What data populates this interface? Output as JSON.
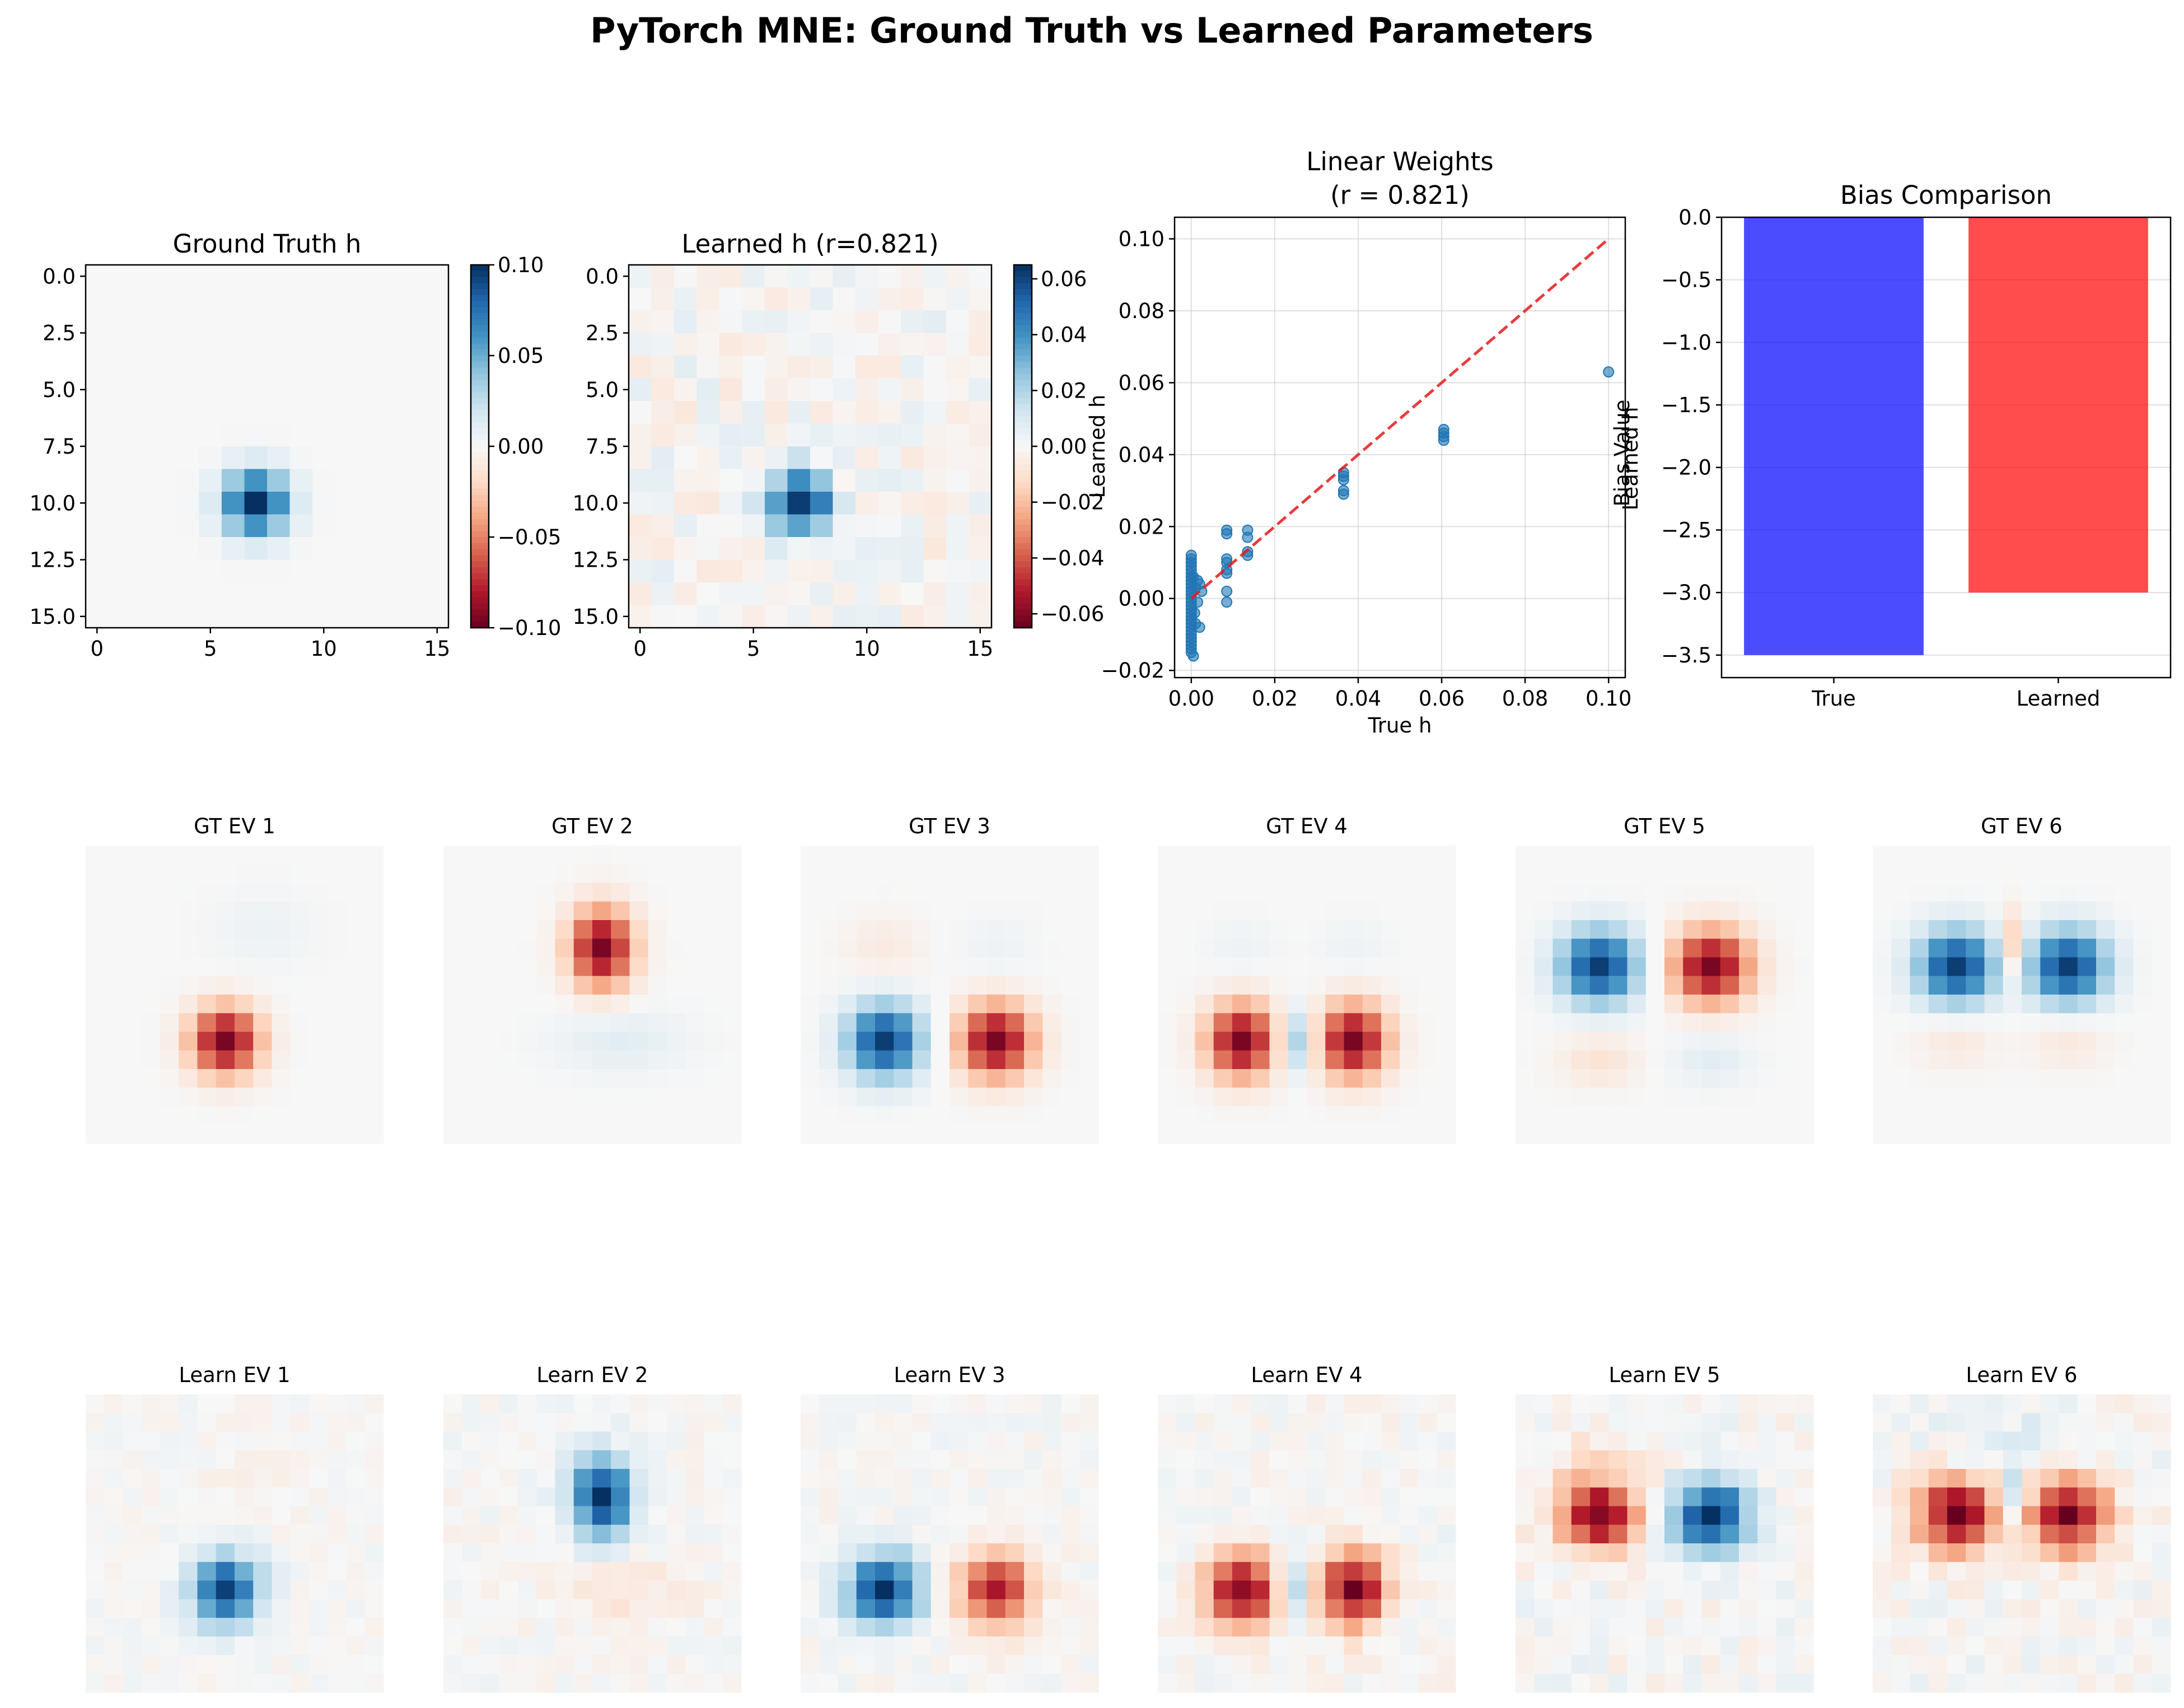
{
  "figure": {
    "title": "PyTorch MNE: Ground Truth vs Learned Parameters"
  },
  "chart_data": [
    {
      "type": "heatmap",
      "title": "Ground Truth h",
      "colormap": "RdBu",
      "grid_size": [
        16,
        16
      ],
      "generator": {
        "kind": "gaussian_blob",
        "center": [
          7,
          10
        ],
        "sigma": 1.0,
        "peak": 0.1,
        "noise": 0.0
      },
      "x_ticks": [
        0,
        5,
        10,
        15
      ],
      "y_ticks": [
        0.0,
        2.5,
        5.0,
        7.5,
        10.0,
        12.5,
        15.0
      ],
      "x_tick_labels": [
        "0",
        "5",
        "10",
        "15"
      ],
      "y_tick_labels": [
        "0.0",
        "2.5",
        "5.0",
        "7.5",
        "10.0",
        "12.5",
        "15.0"
      ],
      "colorbar": {
        "range": [
          -0.1,
          0.1
        ],
        "ticks": [
          "0.10",
          "0.05",
          "0.00",
          "−0.05",
          "−0.10"
        ],
        "label": ""
      }
    },
    {
      "type": "heatmap",
      "title": "Learned h (r=0.821)",
      "colormap": "RdBu",
      "grid_size": [
        16,
        16
      ],
      "generator": {
        "kind": "gaussian_blob",
        "center": [
          7,
          10
        ],
        "sigma": 1.0,
        "peak": 0.063,
        "noise": 0.007
      },
      "x_ticks": [
        0,
        5,
        10,
        15
      ],
      "y_ticks": [
        0.0,
        2.5,
        5.0,
        7.5,
        10.0,
        12.5,
        15.0
      ],
      "x_tick_labels": [
        "0",
        "5",
        "10",
        "15"
      ],
      "y_tick_labels": [
        "0.0",
        "2.5",
        "5.0",
        "7.5",
        "10.0",
        "12.5",
        "15.0"
      ],
      "colorbar": {
        "range": [
          -0.065,
          0.065
        ],
        "ticks": [
          "0.06",
          "0.04",
          "0.02",
          "0.00",
          "−0.02",
          "−0.04",
          "−0.06"
        ],
        "label": "Learned h"
      }
    },
    {
      "type": "scatter",
      "title_lines": [
        "Linear Weights",
        "(r = 0.821)"
      ],
      "xlabel": "True h",
      "ylabel": "Learned h",
      "xlim": [
        -0.004,
        0.104
      ],
      "ylim": [
        -0.022,
        0.106
      ],
      "x_ticks": [
        "0.00",
        "0.02",
        "0.04",
        "0.06",
        "0.08",
        "0.10"
      ],
      "y_ticks": [
        "−0.02",
        "0.00",
        "0.02",
        "0.04",
        "0.06",
        "0.08",
        "0.10"
      ],
      "identity_line": {
        "from": [
          0,
          0
        ],
        "to": [
          0.1,
          0.1
        ],
        "color": "#e41a1c",
        "style": "dashed"
      },
      "point_color": "#1f77b4",
      "points": [
        [
          0.0,
          0.012
        ],
        [
          0.0,
          0.011
        ],
        [
          0.0,
          0.01
        ],
        [
          0.0,
          0.009
        ],
        [
          0.0,
          0.008
        ],
        [
          0.0,
          0.007
        ],
        [
          0.0,
          0.006
        ],
        [
          0.0,
          0.005
        ],
        [
          0.0,
          0.004
        ],
        [
          0.0,
          0.003
        ],
        [
          0.0,
          0.002
        ],
        [
          0.0,
          0.001
        ],
        [
          0.0,
          0.0
        ],
        [
          0.0,
          -0.001
        ],
        [
          0.0,
          -0.002
        ],
        [
          0.0,
          -0.003
        ],
        [
          0.0,
          -0.004
        ],
        [
          0.0,
          -0.005
        ],
        [
          0.0,
          -0.006
        ],
        [
          0.0,
          -0.007
        ],
        [
          0.0,
          -0.008
        ],
        [
          0.0,
          -0.009
        ],
        [
          0.0,
          -0.01
        ],
        [
          0.0,
          -0.011
        ],
        [
          0.0,
          -0.012
        ],
        [
          0.0,
          -0.013
        ],
        [
          0.0,
          -0.014
        ],
        [
          0.0,
          -0.015
        ],
        [
          0.0005,
          -0.016
        ],
        [
          0.0005,
          0.006
        ],
        [
          0.0008,
          -0.004
        ],
        [
          0.001,
          0.003
        ],
        [
          0.001,
          -0.007
        ],
        [
          0.0015,
          0.005
        ],
        [
          0.0015,
          -0.001
        ],
        [
          0.002,
          0.004
        ],
        [
          0.002,
          -0.008
        ],
        [
          0.0025,
          0.002
        ],
        [
          0.0085,
          0.019
        ],
        [
          0.0085,
          0.018
        ],
        [
          0.0085,
          0.011
        ],
        [
          0.0085,
          0.01
        ],
        [
          0.0085,
          0.008
        ],
        [
          0.0085,
          0.007
        ],
        [
          0.0085,
          0.002
        ],
        [
          0.0085,
          -0.001
        ],
        [
          0.0135,
          0.019
        ],
        [
          0.0135,
          0.017
        ],
        [
          0.0135,
          0.013
        ],
        [
          0.0135,
          0.012
        ],
        [
          0.0365,
          0.035
        ],
        [
          0.0365,
          0.034
        ],
        [
          0.0365,
          0.033
        ],
        [
          0.0365,
          0.03
        ],
        [
          0.0365,
          0.029
        ],
        [
          0.0605,
          0.047
        ],
        [
          0.0605,
          0.046
        ],
        [
          0.0605,
          0.045
        ],
        [
          0.0605,
          0.044
        ],
        [
          0.1,
          0.063
        ]
      ]
    },
    {
      "type": "bar",
      "title": "Bias Comparison",
      "ylabel": "Bias Value",
      "categories": [
        "True",
        "Learned"
      ],
      "values": [
        -3.5,
        -3.0
      ],
      "colors": [
        "#0000ff",
        "#ff0000"
      ],
      "ylim": [
        -3.68,
        0.0
      ],
      "y_ticks": [
        "0.0",
        "−0.5",
        "−1.0",
        "−1.5",
        "−2.0",
        "−2.5",
        "−3.0",
        "−3.5"
      ]
    },
    {
      "type": "heatmap",
      "title": "GT EV 1",
      "grid_size": [
        16,
        16
      ],
      "blobs": [
        {
          "cx": 7,
          "cy": 10,
          "sx": 1.3,
          "sy": 1.3,
          "amp": -1.0
        },
        {
          "cx": 9,
          "cy": 4,
          "sx": 2,
          "sy": 1.5,
          "amp": 0.06
        }
      ]
    },
    {
      "type": "heatmap",
      "title": "GT EV 2",
      "grid_size": [
        16,
        16
      ],
      "blobs": [
        {
          "cx": 8,
          "cy": 5,
          "sx": 1.2,
          "sy": 1.5,
          "amp": -1.0
        },
        {
          "cx": 9,
          "cy": 10,
          "sx": 2.5,
          "sy": 1.2,
          "amp": 0.12
        }
      ]
    },
    {
      "type": "heatmap",
      "title": "GT EV 3",
      "grid_size": [
        16,
        16
      ],
      "blobs": [
        {
          "cx": 4,
          "cy": 10,
          "sx": 1.4,
          "sy": 1.4,
          "amp": 1.0
        },
        {
          "cx": 10,
          "cy": 10,
          "sx": 1.4,
          "sy": 1.4,
          "amp": -1.0
        },
        {
          "cx": 4,
          "cy": 5,
          "sx": 1.5,
          "sy": 1.2,
          "amp": -0.1
        },
        {
          "cx": 10,
          "cy": 5,
          "sx": 1.5,
          "sy": 1.2,
          "amp": 0.06
        }
      ]
    },
    {
      "type": "heatmap",
      "title": "GT EV 4",
      "grid_size": [
        16,
        16
      ],
      "blobs": [
        {
          "cx": 4,
          "cy": 10,
          "sx": 1.3,
          "sy": 1.4,
          "amp": -1.0
        },
        {
          "cx": 10,
          "cy": 10,
          "sx": 1.3,
          "sy": 1.4,
          "amp": -1.0
        },
        {
          "cx": 7,
          "cy": 10,
          "sx": 0.6,
          "sy": 1.2,
          "amp": 0.45
        },
        {
          "cx": 4,
          "cy": 5,
          "sx": 1.3,
          "sy": 1.0,
          "amp": 0.06
        },
        {
          "cx": 10,
          "cy": 5,
          "sx": 1.3,
          "sy": 1.0,
          "amp": 0.06
        }
      ]
    },
    {
      "type": "heatmap",
      "title": "GT EV 5",
      "grid_size": [
        16,
        16
      ],
      "blobs": [
        {
          "cx": 4,
          "cy": 6,
          "sx": 1.5,
          "sy": 1.4,
          "amp": 1.0
        },
        {
          "cx": 10,
          "cy": 6,
          "sx": 1.5,
          "sy": 1.4,
          "amp": -1.0
        },
        {
          "cx": 4,
          "cy": 11,
          "sx": 1.5,
          "sy": 1.0,
          "amp": -0.15
        },
        {
          "cx": 10,
          "cy": 11,
          "sx": 1.5,
          "sy": 1.0,
          "amp": 0.12
        }
      ]
    },
    {
      "type": "heatmap",
      "title": "GT EV 6",
      "grid_size": [
        16,
        16
      ],
      "blobs": [
        {
          "cx": 4,
          "cy": 6,
          "sx": 1.5,
          "sy": 1.4,
          "amp": 1.0
        },
        {
          "cx": 10,
          "cy": 6,
          "sx": 1.5,
          "sy": 1.4,
          "amp": 1.0
        },
        {
          "cx": 7,
          "cy": 5,
          "sx": 0.5,
          "sy": 1.3,
          "amp": -0.4
        },
        {
          "cx": 4,
          "cy": 10,
          "sx": 1.5,
          "sy": 1.0,
          "amp": -0.12
        },
        {
          "cx": 10,
          "cy": 10,
          "sx": 1.5,
          "sy": 1.0,
          "amp": -0.12
        }
      ]
    },
    {
      "type": "heatmap",
      "title": "Learn EV 1",
      "grid_size": [
        16,
        16
      ],
      "noise": 0.05,
      "blobs": [
        {
          "cx": 7,
          "cy": 10,
          "sx": 1.3,
          "sy": 1.3,
          "amp": 1.0
        },
        {
          "cx": 9,
          "cy": 4,
          "sx": 2,
          "sy": 1.5,
          "amp": -0.06
        }
      ]
    },
    {
      "type": "heatmap",
      "title": "Learn EV 2",
      "grid_size": [
        16,
        16
      ],
      "noise": 0.06,
      "blobs": [
        {
          "cx": 8,
          "cy": 5,
          "sx": 1.2,
          "sy": 1.5,
          "amp": 1.0
        },
        {
          "cx": 9,
          "cy": 10,
          "sx": 2.5,
          "sy": 1.2,
          "amp": -0.12
        }
      ]
    },
    {
      "type": "heatmap",
      "title": "Learn EV 3",
      "grid_size": [
        16,
        16
      ],
      "noise": 0.06,
      "blobs": [
        {
          "cx": 4,
          "cy": 10,
          "sx": 1.4,
          "sy": 1.4,
          "amp": 1.0
        },
        {
          "cx": 10,
          "cy": 10,
          "sx": 1.4,
          "sy": 1.4,
          "amp": -0.85
        }
      ]
    },
    {
      "type": "heatmap",
      "title": "Learn EV 4",
      "grid_size": [
        16,
        16
      ],
      "noise": 0.07,
      "blobs": [
        {
          "cx": 4,
          "cy": 10,
          "sx": 1.3,
          "sy": 1.4,
          "amp": -1.0
        },
        {
          "cx": 10,
          "cy": 10,
          "sx": 1.3,
          "sy": 1.4,
          "amp": -1.0
        },
        {
          "cx": 7,
          "cy": 10,
          "sx": 0.6,
          "sy": 1.2,
          "amp": 0.35
        }
      ]
    },
    {
      "type": "heatmap",
      "title": "Learn EV 5",
      "grid_size": [
        16,
        16
      ],
      "noise": 0.09,
      "blobs": [
        {
          "cx": 4,
          "cy": 6,
          "sx": 1.6,
          "sy": 1.3,
          "amp": -1.0
        },
        {
          "cx": 10,
          "cy": 6,
          "sx": 1.5,
          "sy": 1.4,
          "amp": 1.0
        },
        {
          "cx": 4,
          "cy": 3,
          "sx": 2,
          "sy": 1.0,
          "amp": -0.15
        }
      ]
    },
    {
      "type": "heatmap",
      "title": "Learn EV 6",
      "grid_size": [
        16,
        16
      ],
      "noise": 0.09,
      "blobs": [
        {
          "cx": 4,
          "cy": 6,
          "sx": 1.5,
          "sy": 1.4,
          "amp": -1.0
        },
        {
          "cx": 10,
          "cy": 6,
          "sx": 1.5,
          "sy": 1.4,
          "amp": -1.0
        },
        {
          "cx": 7,
          "cy": 5,
          "sx": 0.5,
          "sy": 1.3,
          "amp": 0.4
        },
        {
          "cx": 7,
          "cy": 2,
          "sx": 3,
          "sy": 1.0,
          "amp": 0.12
        }
      ]
    }
  ]
}
